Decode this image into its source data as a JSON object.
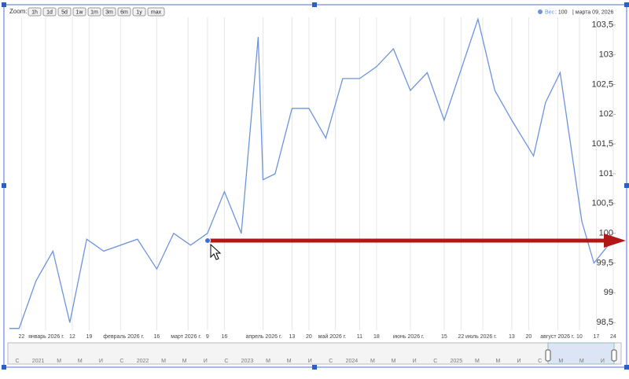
{
  "chart_data": {
    "type": "line",
    "zoom_label": "Zoom:",
    "zoom_buttons": [
      "1h",
      "1d",
      "5d",
      "1w",
      "1m",
      "3m",
      "6m",
      "1y",
      "max"
    ],
    "legend_value": ": 100",
    "legend_date": "| марта 09, 2026",
    "x": [
      "2025-12-17",
      "2025-12-21",
      "2025-12-28",
      "2026-01-04",
      "2026-01-11",
      "2026-01-18",
      "2026-01-25",
      "2026-02-08",
      "2026-02-16",
      "2026-02-23",
      "2026-03-02",
      "2026-03-09",
      "2026-03-16",
      "2026-03-23",
      "2026-03-30",
      "2026-04-01",
      "2026-04-06",
      "2026-04-13",
      "2026-04-20",
      "2026-04-27",
      "2026-05-04",
      "2026-05-11",
      "2026-05-18",
      "2026-05-25",
      "2026-06-01",
      "2026-06-08",
      "2026-06-15",
      "2026-06-29",
      "2026-07-06",
      "2026-07-13",
      "2026-07-22",
      "2026-07-27",
      "2026-08-02",
      "2026-08-11",
      "2026-08-16",
      "2026-08-24"
    ],
    "series": [
      {
        "name": "Вес",
        "color": "#6d94dc",
        "values": [
          98.4,
          98.4,
          99.2,
          99.7,
          98.5,
          99.9,
          99.7,
          99.9,
          99.4,
          100,
          99.8,
          100,
          100.7,
          100,
          103.3,
          100.9,
          101,
          102.1,
          102.1,
          101.6,
          102.6,
          102.6,
          102.8,
          103.1,
          102.4,
          102.7,
          101.9,
          103.6,
          102.4,
          101.9,
          101.3,
          102.2,
          102.7,
          100.2,
          99.5,
          99.9
        ]
      }
    ],
    "xlim": [
      "2025-12-17",
      "2026-08-25"
    ],
    "xticks": [
      {
        "value": "2025-12-22",
        "label": "22"
      },
      {
        "value": "2026-01-01",
        "label": "январь 2026 г."
      },
      {
        "value": "2026-01-12",
        "label": "12"
      },
      {
        "value": "2026-01-19",
        "label": "19"
      },
      {
        "value": "2026-02-01",
        "label": "февраль 2026 г."
      },
      {
        "value": "2026-02-16",
        "label": "16"
      },
      {
        "value": "2026-03-01",
        "label": "март 2026 г."
      },
      {
        "value": "2026-03-09",
        "label": "9"
      },
      {
        "value": "2026-03-16",
        "label": "16"
      },
      {
        "value": "2026-04-01",
        "label": "апрель 2026 г."
      },
      {
        "value": "2026-04-13",
        "label": "13"
      },
      {
        "value": "2026-04-20",
        "label": "20"
      },
      {
        "value": "2026-05-01",
        "label": "май 2026 г."
      },
      {
        "value": "2026-05-11",
        "label": "11"
      },
      {
        "value": "2026-05-18",
        "label": "18"
      },
      {
        "value": "2026-06-01",
        "label": "июнь 2026 г."
      },
      {
        "value": "2026-06-15",
        "label": "15"
      },
      {
        "value": "2026-06-22",
        "label": "22"
      },
      {
        "value": "2026-07-01",
        "label": "июль 2026 г."
      },
      {
        "value": "2026-07-13",
        "label": "13"
      },
      {
        "value": "2026-07-20",
        "label": "20"
      },
      {
        "value": "2026-08-01",
        "label": "август 2026 г."
      },
      {
        "value": "2026-08-10",
        "label": "10"
      },
      {
        "value": "2026-08-17",
        "label": "17"
      },
      {
        "value": "2026-08-24",
        "label": "24"
      }
    ],
    "ylim": [
      98.37,
      103.63
    ],
    "yticks": [
      {
        "value": 98.5,
        "label": "98,5"
      },
      99,
      {
        "value": 99.5,
        "label": "99,5"
      },
      100,
      {
        "value": 100.5,
        "label": "100,5"
      },
      101,
      {
        "value": 101.5,
        "label": "101,5"
      },
      102,
      {
        "value": 102.5,
        "label": "102,5"
      },
      103,
      {
        "value": 103.5,
        "label": "103,5"
      }
    ],
    "grid": true,
    "navigator_labels": [
      "С",
      "2021",
      "М",
      "М",
      "И",
      "С",
      "2022",
      "М",
      "М",
      "И",
      "С",
      "2023",
      "М",
      "М",
      "И",
      "С",
      "2024",
      "М",
      "М",
      "И",
      "С",
      "2025",
      "М",
      "М",
      "И",
      "С",
      "М",
      "М",
      "И"
    ]
  }
}
